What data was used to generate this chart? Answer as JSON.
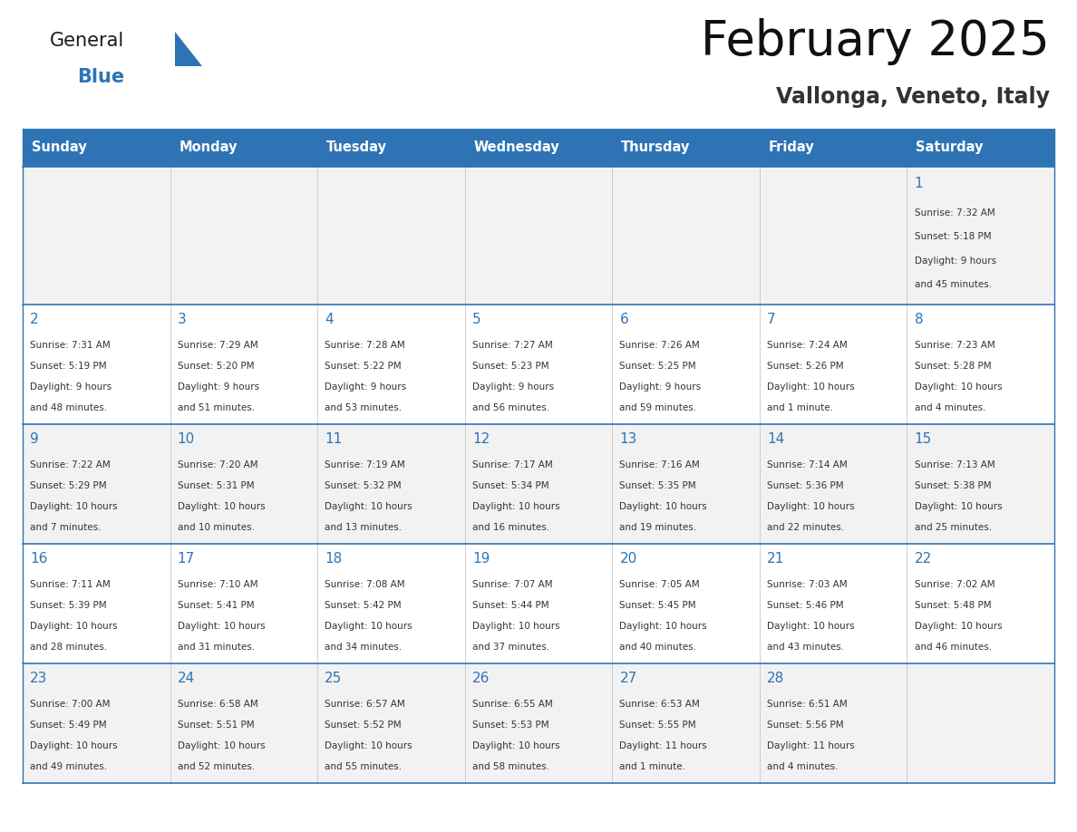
{
  "title": "February 2025",
  "subtitle": "Vallonga, Veneto, Italy",
  "header_bg": "#2E74B5",
  "header_text": "#FFFFFF",
  "row_bg_odd": "#F2F2F2",
  "row_bg_even": "#FFFFFF",
  "day_number_color": "#2E74B5",
  "text_color": "#333333",
  "separator_color": "#2E74B5",
  "days_of_week": [
    "Sunday",
    "Monday",
    "Tuesday",
    "Wednesday",
    "Thursday",
    "Friday",
    "Saturday"
  ],
  "logo_general_color": "#1a1a1a",
  "logo_blue_color": "#2E74B5",
  "calendar_data": [
    [
      null,
      null,
      null,
      null,
      null,
      null,
      {
        "day": 1,
        "sunrise": "7:32 AM",
        "sunset": "5:18 PM",
        "daylight": "9 hours and 45 minutes."
      }
    ],
    [
      {
        "day": 2,
        "sunrise": "7:31 AM",
        "sunset": "5:19 PM",
        "daylight": "9 hours and 48 minutes."
      },
      {
        "day": 3,
        "sunrise": "7:29 AM",
        "sunset": "5:20 PM",
        "daylight": "9 hours and 51 minutes."
      },
      {
        "day": 4,
        "sunrise": "7:28 AM",
        "sunset": "5:22 PM",
        "daylight": "9 hours and 53 minutes."
      },
      {
        "day": 5,
        "sunrise": "7:27 AM",
        "sunset": "5:23 PM",
        "daylight": "9 hours and 56 minutes."
      },
      {
        "day": 6,
        "sunrise": "7:26 AM",
        "sunset": "5:25 PM",
        "daylight": "9 hours and 59 minutes."
      },
      {
        "day": 7,
        "sunrise": "7:24 AM",
        "sunset": "5:26 PM",
        "daylight": "10 hours and 1 minute."
      },
      {
        "day": 8,
        "sunrise": "7:23 AM",
        "sunset": "5:28 PM",
        "daylight": "10 hours and 4 minutes."
      }
    ],
    [
      {
        "day": 9,
        "sunrise": "7:22 AM",
        "sunset": "5:29 PM",
        "daylight": "10 hours and 7 minutes."
      },
      {
        "day": 10,
        "sunrise": "7:20 AM",
        "sunset": "5:31 PM",
        "daylight": "10 hours and 10 minutes."
      },
      {
        "day": 11,
        "sunrise": "7:19 AM",
        "sunset": "5:32 PM",
        "daylight": "10 hours and 13 minutes."
      },
      {
        "day": 12,
        "sunrise": "7:17 AM",
        "sunset": "5:34 PM",
        "daylight": "10 hours and 16 minutes."
      },
      {
        "day": 13,
        "sunrise": "7:16 AM",
        "sunset": "5:35 PM",
        "daylight": "10 hours and 19 minutes."
      },
      {
        "day": 14,
        "sunrise": "7:14 AM",
        "sunset": "5:36 PM",
        "daylight": "10 hours and 22 minutes."
      },
      {
        "day": 15,
        "sunrise": "7:13 AM",
        "sunset": "5:38 PM",
        "daylight": "10 hours and 25 minutes."
      }
    ],
    [
      {
        "day": 16,
        "sunrise": "7:11 AM",
        "sunset": "5:39 PM",
        "daylight": "10 hours and 28 minutes."
      },
      {
        "day": 17,
        "sunrise": "7:10 AM",
        "sunset": "5:41 PM",
        "daylight": "10 hours and 31 minutes."
      },
      {
        "day": 18,
        "sunrise": "7:08 AM",
        "sunset": "5:42 PM",
        "daylight": "10 hours and 34 minutes."
      },
      {
        "day": 19,
        "sunrise": "7:07 AM",
        "sunset": "5:44 PM",
        "daylight": "10 hours and 37 minutes."
      },
      {
        "day": 20,
        "sunrise": "7:05 AM",
        "sunset": "5:45 PM",
        "daylight": "10 hours and 40 minutes."
      },
      {
        "day": 21,
        "sunrise": "7:03 AM",
        "sunset": "5:46 PM",
        "daylight": "10 hours and 43 minutes."
      },
      {
        "day": 22,
        "sunrise": "7:02 AM",
        "sunset": "5:48 PM",
        "daylight": "10 hours and 46 minutes."
      }
    ],
    [
      {
        "day": 23,
        "sunrise": "7:00 AM",
        "sunset": "5:49 PM",
        "daylight": "10 hours and 49 minutes."
      },
      {
        "day": 24,
        "sunrise": "6:58 AM",
        "sunset": "5:51 PM",
        "daylight": "10 hours and 52 minutes."
      },
      {
        "day": 25,
        "sunrise": "6:57 AM",
        "sunset": "5:52 PM",
        "daylight": "10 hours and 55 minutes."
      },
      {
        "day": 26,
        "sunrise": "6:55 AM",
        "sunset": "5:53 PM",
        "daylight": "10 hours and 58 minutes."
      },
      {
        "day": 27,
        "sunrise": "6:53 AM",
        "sunset": "5:55 PM",
        "daylight": "11 hours and 1 minute."
      },
      {
        "day": 28,
        "sunrise": "6:51 AM",
        "sunset": "5:56 PM",
        "daylight": "11 hours and 4 minutes."
      },
      null
    ]
  ]
}
